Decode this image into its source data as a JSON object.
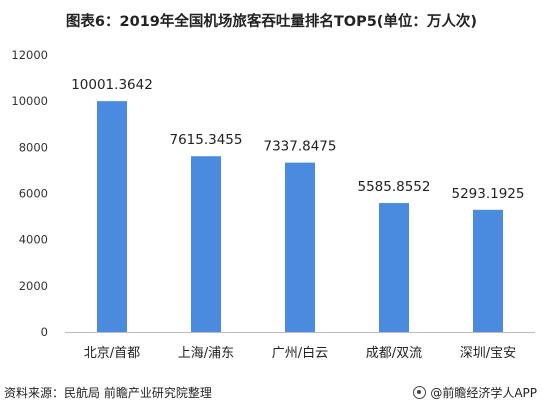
{
  "title": "图表6：2019年全国机场旅客吞吐量排名TOP5(单位：万人次)",
  "source": "资料来源：民航局 前瞻产业研究院整理",
  "brand": "@前瞻经济学人APP",
  "colors": {
    "bar": "#4a8bdf",
    "axis": "#bbbbbb"
  },
  "chart_data": {
    "type": "bar",
    "title": "图表6：2019年全国机场旅客吞吐量排名TOP5(单位：万人次)",
    "categories": [
      "北京/首都",
      "上海/浦东",
      "广州/白云",
      "成都/双流",
      "深圳/宝安"
    ],
    "values": [
      10001.3642,
      7615.3455,
      7337.8475,
      5585.8552,
      5293.1925
    ],
    "value_labels": [
      "10001.3642",
      "7615.3455",
      "7337.8475",
      "5585.8552",
      "5293.1925"
    ],
    "yticks": [
      "0",
      "2000",
      "4000",
      "6000",
      "8000",
      "10000",
      "12000"
    ],
    "ylim": [
      0,
      12000
    ],
    "grid": false,
    "legend": "none"
  }
}
